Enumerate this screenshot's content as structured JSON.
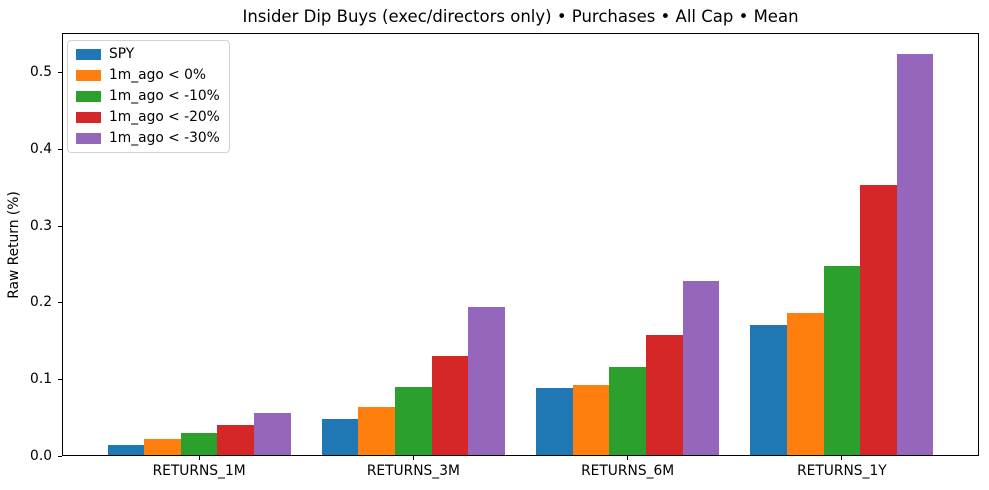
{
  "chart_data": {
    "type": "bar",
    "title": "Insider Dip Buys (exec/directors only) • Purchases • All Cap • Mean",
    "xlabel": "",
    "ylabel": "Raw Return (%)",
    "categories": [
      "RETURNS_1M",
      "RETURNS_3M",
      "RETURNS_6M",
      "RETURNS_1Y"
    ],
    "series": [
      {
        "name": "SPY",
        "color": "#1f77b4",
        "values": [
          0.014,
          0.048,
          0.089,
          0.171
        ]
      },
      {
        "name": "1m_ago < 0%",
        "color": "#ff7f0e",
        "values": [
          0.022,
          0.064,
          0.093,
          0.186
        ]
      },
      {
        "name": "1m_ago < -10%",
        "color": "#2ca02c",
        "values": [
          0.03,
          0.09,
          0.116,
          0.248
        ]
      },
      {
        "name": "1m_ago < -20%",
        "color": "#d62728",
        "values": [
          0.041,
          0.131,
          0.158,
          0.354
        ]
      },
      {
        "name": "1m_ago < -30%",
        "color": "#9467bd",
        "values": [
          0.056,
          0.194,
          0.229,
          0.525
        ]
      }
    ],
    "yticks": [
      0.0,
      0.1,
      0.2,
      0.3,
      0.4,
      0.5
    ],
    "ylim": [
      0,
      0.552
    ],
    "grid": false,
    "legend_position": "upper-left",
    "spine_color": "#000000",
    "background_color": "#ffffff"
  }
}
